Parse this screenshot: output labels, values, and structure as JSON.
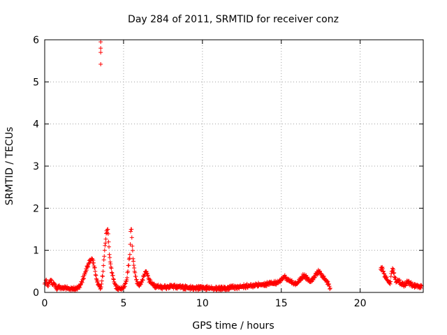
{
  "chart_data": {
    "type": "scatter",
    "title": "Day 284 of 2011, SRMTID for receiver conz",
    "xlabel": "GPS time / hours",
    "ylabel": "SRMTID / TECUs",
    "xlim": [
      0,
      24
    ],
    "ylim": [
      0,
      6
    ],
    "xticks": [
      0,
      5,
      10,
      15,
      20
    ],
    "yticks": [
      0,
      1,
      2,
      3,
      4,
      5,
      6
    ],
    "grid": true,
    "marker": "+",
    "color": "#ff0000",
    "series": [
      {
        "name": "SRMTID",
        "x": [
          0.0,
          0.1,
          0.2,
          0.3,
          0.4,
          0.5,
          0.6,
          0.7,
          0.8,
          0.9,
          1.0,
          1.1,
          1.2,
          1.3,
          1.4,
          1.5,
          1.6,
          1.7,
          1.8,
          1.9,
          2.0,
          2.1,
          2.2,
          2.3,
          2.4,
          2.5,
          2.6,
          2.7,
          2.8,
          2.9,
          3.0,
          3.1,
          3.2,
          3.3,
          3.4,
          3.5,
          3.55,
          3.6,
          3.7,
          3.8,
          3.9,
          4.0,
          4.05,
          4.1,
          4.2,
          4.3,
          4.4,
          4.5,
          4.6,
          4.8,
          5.0,
          5.2,
          5.4,
          5.45,
          5.5,
          5.55,
          5.6,
          5.7,
          5.8,
          5.9,
          6.0,
          6.2,
          6.4,
          6.5,
          6.6,
          6.8,
          7.0,
          7.5,
          8.0,
          8.5,
          9.0,
          9.5,
          10.0,
          10.5,
          11.0,
          11.5,
          12.0,
          12.5,
          13.0,
          13.5,
          14.0,
          14.5,
          14.8,
          15.0,
          15.2,
          15.4,
          15.6,
          15.8,
          16.0,
          16.2,
          16.4,
          16.6,
          16.8,
          17.0,
          17.2,
          17.4,
          17.6,
          17.8,
          18.0,
          18.1,
          21.3,
          21.4,
          21.5,
          21.6,
          21.7,
          21.8,
          21.9,
          22.0,
          22.1,
          22.2,
          22.3,
          22.4,
          22.6,
          22.8,
          23.0,
          23.2,
          23.4,
          23.6,
          23.8,
          23.9,
          3.55,
          3.55,
          3.55,
          3.55
        ],
        "y": [
          0.2,
          0.3,
          0.15,
          0.25,
          0.3,
          0.18,
          0.22,
          0.12,
          0.1,
          0.15,
          0.12,
          0.1,
          0.08,
          0.12,
          0.1,
          0.09,
          0.08,
          0.1,
          0.07,
          0.09,
          0.1,
          0.12,
          0.15,
          0.2,
          0.3,
          0.4,
          0.5,
          0.6,
          0.7,
          0.75,
          0.8,
          0.7,
          0.5,
          0.3,
          0.2,
          0.15,
          0.1,
          0.2,
          0.5,
          1.0,
          1.4,
          1.5,
          1.2,
          0.9,
          0.6,
          0.4,
          0.25,
          0.15,
          0.1,
          0.08,
          0.1,
          0.3,
          0.9,
          1.45,
          1.5,
          1.1,
          0.8,
          0.5,
          0.3,
          0.2,
          0.15,
          0.3,
          0.5,
          0.45,
          0.3,
          0.2,
          0.15,
          0.12,
          0.14,
          0.13,
          0.12,
          0.1,
          0.11,
          0.1,
          0.09,
          0.1,
          0.12,
          0.14,
          0.16,
          0.18,
          0.2,
          0.22,
          0.25,
          0.3,
          0.38,
          0.3,
          0.25,
          0.22,
          0.2,
          0.3,
          0.4,
          0.35,
          0.25,
          0.3,
          0.45,
          0.5,
          0.4,
          0.3,
          0.2,
          0.1,
          0.55,
          0.6,
          0.45,
          0.35,
          0.3,
          0.25,
          0.2,
          0.5,
          0.55,
          0.35,
          0.25,
          0.3,
          0.2,
          0.18,
          0.25,
          0.2,
          0.15,
          0.18,
          0.12,
          0.15,
          5.95,
          5.8,
          5.7,
          5.42
        ]
      }
    ]
  }
}
